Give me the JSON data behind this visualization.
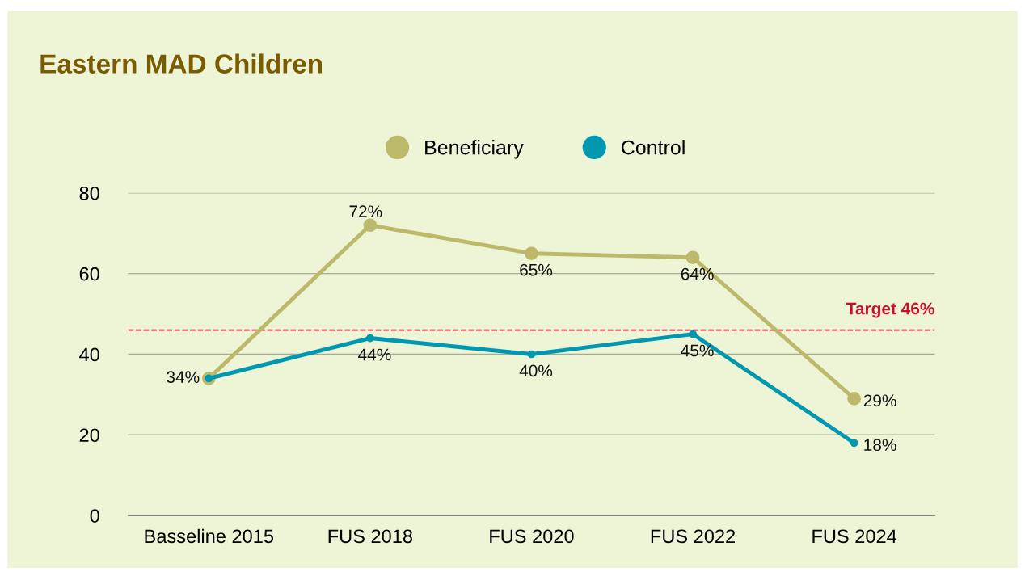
{
  "chart_data": {
    "type": "line",
    "title": "Eastern MAD Children",
    "categories": [
      "Basseline 2015",
      "FUS 2018",
      "FUS 2020",
      "FUS 2022",
      "FUS 2024"
    ],
    "series": [
      {
        "name": "Beneficiary",
        "color": "#bdb96a",
        "values": [
          34,
          72,
          65,
          64,
          29
        ],
        "value_labels": [
          null,
          "72%",
          "65%",
          "64%",
          "29%"
        ]
      },
      {
        "name": "Control",
        "color": "#0098b0",
        "values": [
          34,
          44,
          40,
          45,
          18
        ],
        "value_labels": [
          "34%",
          "44%",
          "40%",
          "45%",
          "18%"
        ]
      }
    ],
    "ylim": [
      0,
      80
    ],
    "yticks": [
      0,
      20,
      40,
      60,
      80
    ],
    "grid": "y",
    "legend": "top",
    "marker": "circle",
    "line_style": "solid",
    "ref_lines": [
      {
        "axis": "y",
        "value": 46,
        "label": "Target 46%",
        "color": "#c8102e",
        "line_style": "dashed"
      }
    ]
  }
}
